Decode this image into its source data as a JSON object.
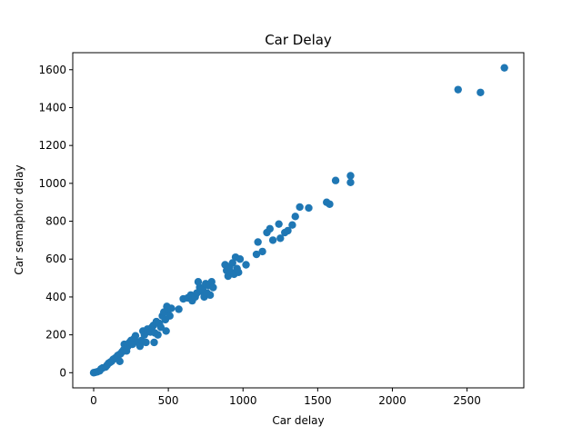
{
  "chart_data": {
    "type": "scatter",
    "title": "Car Delay",
    "xlabel": "Car delay",
    "ylabel": "Car semaphor delay",
    "xlim": [
      -140,
      2880
    ],
    "ylim": [
      -80,
      1690
    ],
    "xticks": [
      0,
      500,
      1000,
      1500,
      2000,
      2500
    ],
    "yticks": [
      0,
      200,
      400,
      600,
      800,
      1000,
      1200,
      1400,
      1600
    ],
    "grid": false,
    "marker_color": "#1f77b4",
    "points": [
      [
        0,
        0
      ],
      [
        10,
        2
      ],
      [
        25,
        5
      ],
      [
        40,
        10
      ],
      [
        50,
        20
      ],
      [
        60,
        25
      ],
      [
        80,
        30
      ],
      [
        90,
        40
      ],
      [
        100,
        50
      ],
      [
        110,
        55
      ],
      [
        120,
        60
      ],
      [
        130,
        70
      ],
      [
        140,
        75
      ],
      [
        150,
        80
      ],
      [
        160,
        90
      ],
      [
        170,
        95
      ],
      [
        175,
        60
      ],
      [
        180,
        100
      ],
      [
        190,
        110
      ],
      [
        200,
        120
      ],
      [
        205,
        150
      ],
      [
        210,
        130
      ],
      [
        220,
        115
      ],
      [
        230,
        140
      ],
      [
        240,
        160
      ],
      [
        250,
        170
      ],
      [
        260,
        150
      ],
      [
        270,
        180
      ],
      [
        280,
        195
      ],
      [
        300,
        160
      ],
      [
        310,
        140
      ],
      [
        320,
        170
      ],
      [
        330,
        220
      ],
      [
        340,
        200
      ],
      [
        350,
        160
      ],
      [
        360,
        230
      ],
      [
        380,
        215
      ],
      [
        390,
        240
      ],
      [
        400,
        250
      ],
      [
        405,
        160
      ],
      [
        410,
        210
      ],
      [
        420,
        270
      ],
      [
        430,
        200
      ],
      [
        440,
        260
      ],
      [
        450,
        240
      ],
      [
        460,
        300
      ],
      [
        470,
        320
      ],
      [
        480,
        280
      ],
      [
        485,
        220
      ],
      [
        490,
        350
      ],
      [
        500,
        330
      ],
      [
        510,
        300
      ],
      [
        520,
        340
      ],
      [
        570,
        335
      ],
      [
        600,
        390
      ],
      [
        630,
        395
      ],
      [
        650,
        410
      ],
      [
        660,
        380
      ],
      [
        680,
        400
      ],
      [
        690,
        420
      ],
      [
        700,
        480
      ],
      [
        710,
        450
      ],
      [
        720,
        430
      ],
      [
        730,
        440
      ],
      [
        740,
        400
      ],
      [
        750,
        470
      ],
      [
        760,
        420
      ],
      [
        770,
        460
      ],
      [
        780,
        410
      ],
      [
        790,
        480
      ],
      [
        800,
        450
      ],
      [
        880,
        570
      ],
      [
        890,
        540
      ],
      [
        900,
        510
      ],
      [
        910,
        560
      ],
      [
        920,
        530
      ],
      [
        930,
        580
      ],
      [
        940,
        520
      ],
      [
        950,
        610
      ],
      [
        960,
        550
      ],
      [
        970,
        530
      ],
      [
        980,
        600
      ],
      [
        1020,
        570
      ],
      [
        1090,
        625
      ],
      [
        1100,
        690
      ],
      [
        1130,
        640
      ],
      [
        1160,
        740
      ],
      [
        1180,
        760
      ],
      [
        1200,
        700
      ],
      [
        1240,
        785
      ],
      [
        1250,
        710
      ],
      [
        1280,
        740
      ],
      [
        1300,
        750
      ],
      [
        1330,
        780
      ],
      [
        1350,
        825
      ],
      [
        1380,
        875
      ],
      [
        1440,
        870
      ],
      [
        1560,
        900
      ],
      [
        1580,
        890
      ],
      [
        1620,
        1015
      ],
      [
        1720,
        1040
      ],
      [
        1720,
        1005
      ],
      [
        2440,
        1495
      ],
      [
        2590,
        1480
      ],
      [
        2750,
        1610
      ]
    ]
  }
}
